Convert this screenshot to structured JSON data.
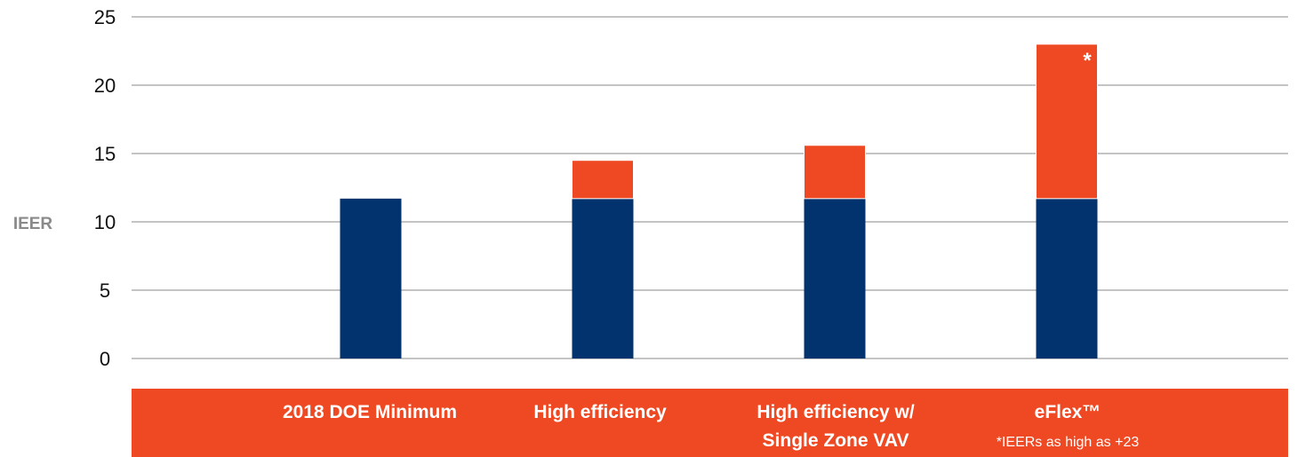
{
  "chart_data": {
    "type": "bar",
    "stacked": true,
    "ylabel": "IEER",
    "ylim": [
      0,
      25
    ],
    "yticks": [
      0,
      5,
      10,
      15,
      20,
      25
    ],
    "grid": true,
    "categories": [
      [
        "2018 DOE Minimum"
      ],
      [
        "High efficiency"
      ],
      [
        "High efficiency w/",
        "Single Zone VAV"
      ],
      [
        "eFlex™"
      ]
    ],
    "series": [
      {
        "color": "#03336f",
        "values": [
          11.7,
          11.7,
          11.7,
          11.7
        ]
      },
      {
        "color": "#ef4923",
        "values": [
          0,
          2.8,
          3.9,
          11.3
        ]
      }
    ],
    "annotations": {
      "marker": "*",
      "note": "*IEERs as high as +23"
    }
  },
  "colors": {
    "accent": "#ef4923",
    "base": "#03336f"
  }
}
